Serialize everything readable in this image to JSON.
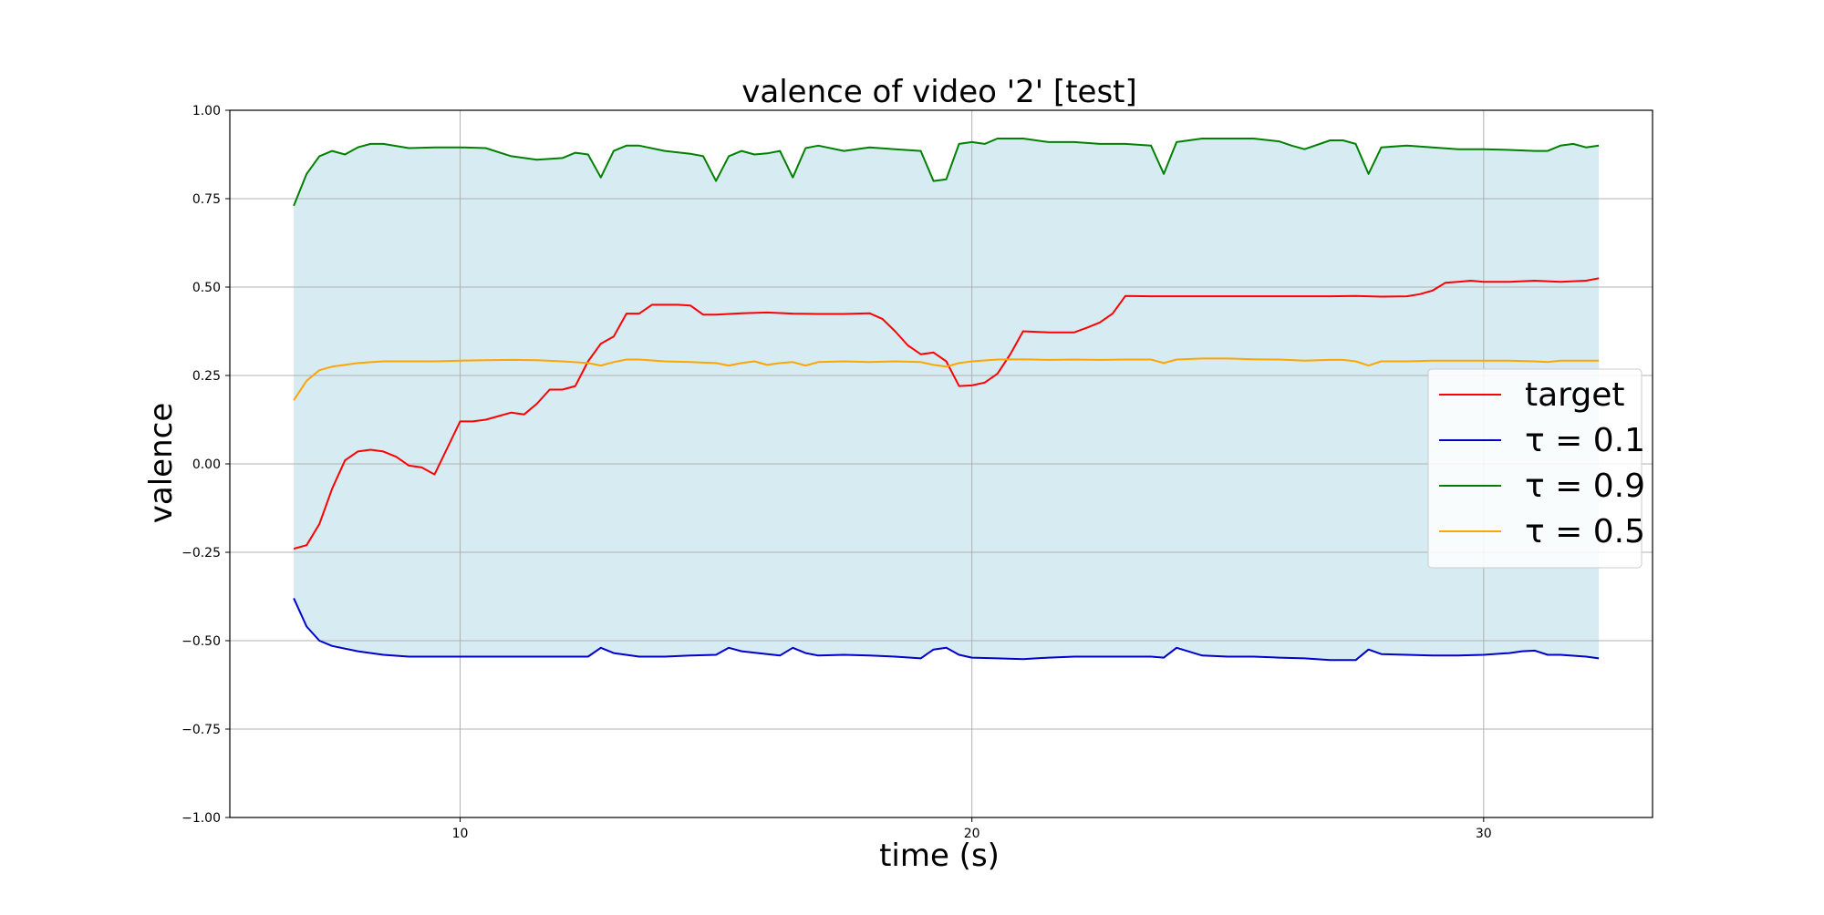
{
  "chart_data": {
    "type": "line",
    "title": "valence of video '2' [test]",
    "xlabel": "time (s)",
    "ylabel": "valence",
    "xlim": [
      5.5,
      33.3
    ],
    "ylim": [
      -1.0,
      1.0
    ],
    "xticks": [
      10,
      20,
      30
    ],
    "xtick_labels": [
      "10",
      "20",
      "30"
    ],
    "yticks": [
      -1.0,
      -0.75,
      -0.5,
      -0.25,
      0.0,
      0.25,
      0.5,
      0.75,
      1.0
    ],
    "ytick_labels": [
      "−1.00",
      "−0.75",
      "−0.50",
      "−0.25",
      "0.00",
      "0.25",
      "0.50",
      "0.75",
      "1.00"
    ],
    "grid": true,
    "legend_position": "right",
    "band": {
      "between": [
        "τ = 0.1",
        "τ = 0.9"
      ],
      "color": "#add8e6"
    },
    "series": [
      {
        "name": "target",
        "legend_label": "target",
        "color": "#ff0000",
        "x": [
          6.75,
          7.0,
          7.25,
          7.5,
          7.75,
          8.0,
          8.25,
          8.5,
          8.75,
          9.0,
          9.25,
          9.5,
          9.75,
          10.0,
          10.25,
          10.5,
          10.75,
          11.0,
          11.25,
          11.5,
          11.75,
          12.0,
          12.25,
          12.5,
          12.75,
          13.0,
          13.25,
          13.5,
          13.75,
          14.0,
          14.25,
          14.5,
          14.75,
          15.0,
          15.5,
          16.0,
          16.5,
          17.0,
          17.5,
          18.0,
          18.25,
          18.5,
          18.75,
          19.0,
          19.25,
          19.5,
          19.75,
          20.0,
          20.25,
          20.5,
          20.75,
          21.0,
          21.5,
          22.0,
          22.25,
          22.5,
          22.75,
          23.0,
          23.5,
          24.0,
          25.0,
          26.0,
          27.0,
          27.5,
          28.0,
          28.5,
          28.75,
          29.0,
          29.25,
          29.5,
          29.75,
          30.0,
          30.5,
          31.0,
          31.5,
          32.0,
          32.25
        ],
        "y": [
          -0.24,
          -0.23,
          -0.17,
          -0.07,
          0.01,
          0.035,
          0.04,
          0.035,
          0.02,
          -0.005,
          -0.01,
          -0.03,
          0.045,
          0.12,
          0.12,
          0.125,
          0.135,
          0.145,
          0.14,
          0.17,
          0.21,
          0.21,
          0.22,
          0.29,
          0.34,
          0.36,
          0.425,
          0.425,
          0.45,
          0.45,
          0.45,
          0.448,
          0.422,
          0.422,
          0.426,
          0.428,
          0.425,
          0.424,
          0.424,
          0.426,
          0.41,
          0.375,
          0.335,
          0.31,
          0.315,
          0.29,
          0.22,
          0.222,
          0.23,
          0.255,
          0.31,
          0.375,
          0.372,
          0.372,
          0.385,
          0.4,
          0.425,
          0.475,
          0.474,
          0.474,
          0.474,
          0.474,
          0.474,
          0.475,
          0.473,
          0.474,
          0.48,
          0.49,
          0.512,
          0.515,
          0.518,
          0.515,
          0.515,
          0.518,
          0.515,
          0.518,
          0.525
        ]
      },
      {
        "name": "τ = 0.1",
        "legend_label": "τ = 0.1",
        "color": "#0000cc",
        "x": [
          6.75,
          7.0,
          7.25,
          7.5,
          8.0,
          8.5,
          9.0,
          9.5,
          10.0,
          10.5,
          11.0,
          11.5,
          12.0,
          12.5,
          12.75,
          13.0,
          13.5,
          14.0,
          14.5,
          15.0,
          15.25,
          15.5,
          16.0,
          16.25,
          16.5,
          16.75,
          17.0,
          17.5,
          18.0,
          18.5,
          19.0,
          19.25,
          19.5,
          19.75,
          20.0,
          20.5,
          21.0,
          21.5,
          22.0,
          22.5,
          23.0,
          23.5,
          23.75,
          24.0,
          24.5,
          25.0,
          25.5,
          26.0,
          26.5,
          27.0,
          27.5,
          27.75,
          28.0,
          28.5,
          29.0,
          29.5,
          30.0,
          30.5,
          30.75,
          31.0,
          31.25,
          31.5,
          32.0,
          32.25
        ],
        "y": [
          -0.38,
          -0.46,
          -0.5,
          -0.515,
          -0.53,
          -0.54,
          -0.545,
          -0.545,
          -0.545,
          -0.545,
          -0.545,
          -0.545,
          -0.545,
          -0.545,
          -0.52,
          -0.535,
          -0.545,
          -0.545,
          -0.542,
          -0.54,
          -0.52,
          -0.53,
          -0.538,
          -0.542,
          -0.52,
          -0.535,
          -0.542,
          -0.54,
          -0.542,
          -0.545,
          -0.55,
          -0.525,
          -0.52,
          -0.54,
          -0.548,
          -0.55,
          -0.552,
          -0.548,
          -0.545,
          -0.545,
          -0.545,
          -0.545,
          -0.548,
          -0.52,
          -0.542,
          -0.545,
          -0.545,
          -0.548,
          -0.55,
          -0.555,
          -0.555,
          -0.525,
          -0.538,
          -0.54,
          -0.542,
          -0.542,
          -0.54,
          -0.535,
          -0.53,
          -0.528,
          -0.54,
          -0.54,
          -0.545,
          -0.55
        ]
      },
      {
        "name": "τ = 0.9",
        "legend_label": "τ = 0.9",
        "color": "#008000",
        "x": [
          6.75,
          7.0,
          7.25,
          7.5,
          7.75,
          8.0,
          8.25,
          8.5,
          9.0,
          9.5,
          10.0,
          10.5,
          11.0,
          11.5,
          12.0,
          12.25,
          12.5,
          12.75,
          13.0,
          13.25,
          13.5,
          14.0,
          14.5,
          14.75,
          15.0,
          15.25,
          15.5,
          15.75,
          16.0,
          16.25,
          16.5,
          16.75,
          17.0,
          17.5,
          18.0,
          18.5,
          19.0,
          19.25,
          19.5,
          19.75,
          20.0,
          20.25,
          20.5,
          21.0,
          21.5,
          22.0,
          22.5,
          23.0,
          23.5,
          23.75,
          24.0,
          24.5,
          25.0,
          25.5,
          26.0,
          26.25,
          26.5,
          27.0,
          27.25,
          27.5,
          27.75,
          28.0,
          28.5,
          29.0,
          29.5,
          30.0,
          30.5,
          31.0,
          31.25,
          31.5,
          31.75,
          32.0,
          32.25
        ],
        "y": [
          0.73,
          0.82,
          0.87,
          0.885,
          0.875,
          0.895,
          0.905,
          0.905,
          0.893,
          0.895,
          0.895,
          0.893,
          0.87,
          0.86,
          0.865,
          0.88,
          0.875,
          0.81,
          0.885,
          0.9,
          0.9,
          0.885,
          0.877,
          0.87,
          0.8,
          0.87,
          0.885,
          0.875,
          0.878,
          0.885,
          0.81,
          0.893,
          0.9,
          0.885,
          0.895,
          0.89,
          0.885,
          0.8,
          0.805,
          0.905,
          0.91,
          0.905,
          0.92,
          0.92,
          0.91,
          0.91,
          0.905,
          0.905,
          0.9,
          0.82,
          0.91,
          0.92,
          0.92,
          0.92,
          0.912,
          0.9,
          0.89,
          0.915,
          0.915,
          0.905,
          0.82,
          0.895,
          0.9,
          0.895,
          0.89,
          0.89,
          0.888,
          0.885,
          0.885,
          0.9,
          0.905,
          0.895,
          0.9
        ]
      },
      {
        "name": "τ = 0.5",
        "legend_label": "τ = 0.5",
        "color": "#ffa500",
        "x": [
          6.75,
          7.0,
          7.25,
          7.5,
          8.0,
          8.5,
          9.0,
          9.5,
          10.0,
          10.5,
          11.0,
          11.5,
          12.0,
          12.5,
          12.75,
          13.0,
          13.25,
          13.5,
          14.0,
          14.5,
          15.0,
          15.25,
          15.5,
          15.75,
          16.0,
          16.25,
          16.5,
          16.75,
          17.0,
          17.5,
          18.0,
          18.5,
          19.0,
          19.25,
          19.5,
          19.75,
          20.0,
          20.5,
          21.0,
          21.5,
          22.0,
          22.5,
          23.0,
          23.5,
          23.75,
          24.0,
          24.5,
          25.0,
          25.5,
          26.0,
          26.5,
          27.0,
          27.25,
          27.5,
          27.75,
          28.0,
          28.5,
          29.0,
          29.5,
          30.0,
          30.5,
          31.0,
          31.25,
          31.5,
          32.0,
          32.25
        ],
        "y": [
          0.18,
          0.235,
          0.265,
          0.275,
          0.285,
          0.29,
          0.29,
          0.29,
          0.292,
          0.293,
          0.294,
          0.293,
          0.29,
          0.285,
          0.278,
          0.288,
          0.295,
          0.295,
          0.29,
          0.288,
          0.285,
          0.278,
          0.285,
          0.29,
          0.28,
          0.285,
          0.288,
          0.278,
          0.288,
          0.29,
          0.288,
          0.29,
          0.288,
          0.28,
          0.275,
          0.285,
          0.29,
          0.295,
          0.296,
          0.294,
          0.295,
          0.294,
          0.295,
          0.295,
          0.285,
          0.295,
          0.298,
          0.298,
          0.296,
          0.295,
          0.292,
          0.294,
          0.294,
          0.29,
          0.278,
          0.29,
          0.29,
          0.292,
          0.292,
          0.292,
          0.292,
          0.29,
          0.288,
          0.292,
          0.292,
          0.292
        ]
      }
    ]
  }
}
